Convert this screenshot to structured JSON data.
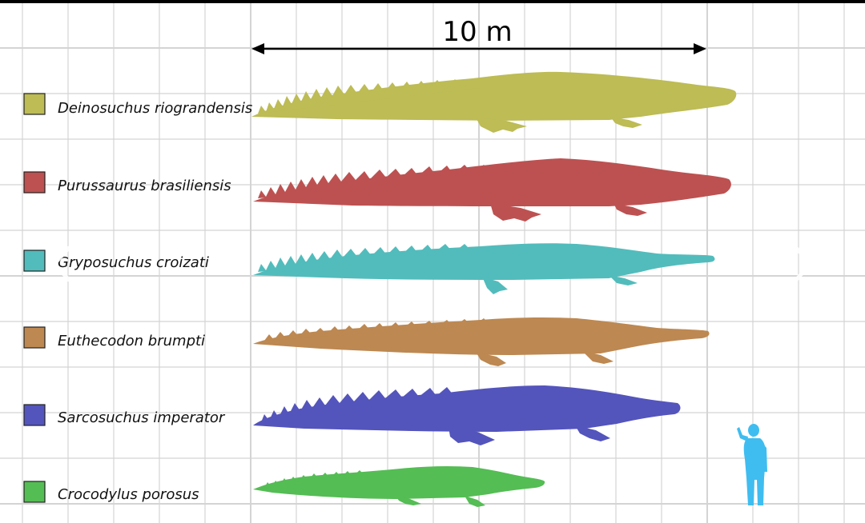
{
  "scale": {
    "label": "10 m"
  },
  "colors": {
    "human": "#3fbdf0",
    "grid": "#d0d0d0"
  },
  "species": [
    {
      "name": "Deinosuchus riograndensis",
      "color": "#bdbc55"
    },
    {
      "name": "Purussaurus brasiliensis",
      "color": "#bd5151"
    },
    {
      "name": "Gryposuchus croizati",
      "color": "#52bcbc"
    },
    {
      "name": "Euthecodon brumpti",
      "color": "#bd8851"
    },
    {
      "name": "Sarcosuchus imperator",
      "color": "#5454bd"
    },
    {
      "name": "Crocodylus porosus",
      "color": "#54bd54"
    }
  ],
  "navigation": {
    "prev_icon": "chevron-left-icon",
    "next_icon": "chevron-right-icon"
  }
}
